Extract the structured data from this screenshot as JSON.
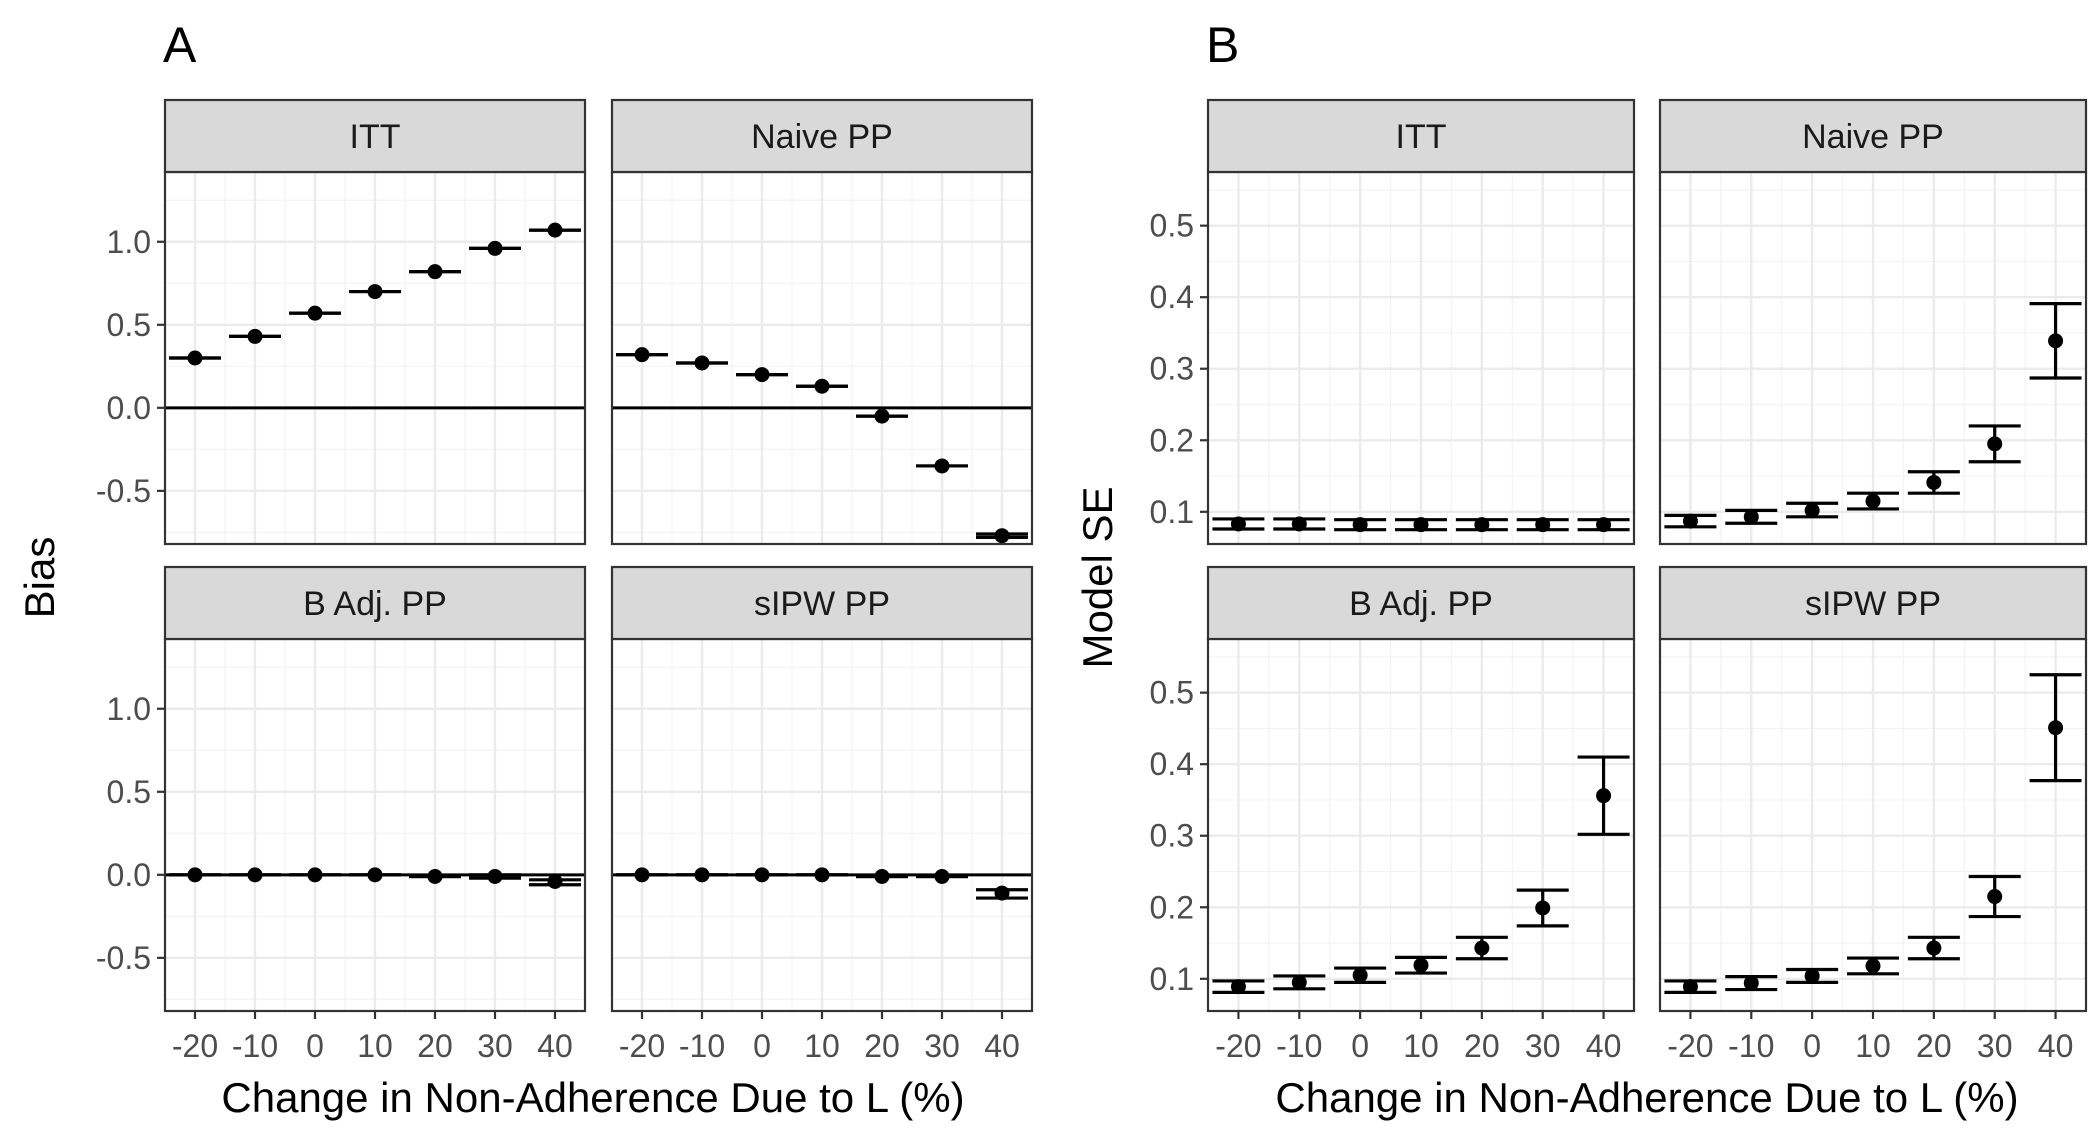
{
  "chart_data": [
    {
      "type": "scatter",
      "tag": "A",
      "xlabel": "Change in Non-Adherence Due to L (%)",
      "ylabel": "Bias",
      "x": [
        -20,
        -10,
        0,
        10,
        20,
        30,
        40
      ],
      "x_tick_labels": [
        "-20",
        "-10",
        "0",
        "10",
        "20",
        "30",
        "40"
      ],
      "ylim": [
        -0.82,
        1.42
      ],
      "y_ticks": [
        -0.5,
        0.0,
        0.5,
        1.0
      ],
      "y_tick_labels": [
        "-0.5",
        "0.0",
        "0.5",
        "1.0"
      ],
      "reference_line": 0,
      "grid": true,
      "facets": [
        {
          "name": "ITT",
          "values": [
            0.3,
            0.43,
            0.57,
            0.7,
            0.82,
            0.96,
            1.07
          ],
          "lower": [
            0.3,
            0.43,
            0.57,
            0.7,
            0.82,
            0.96,
            1.07
          ],
          "upper": [
            0.3,
            0.43,
            0.57,
            0.7,
            0.82,
            0.96,
            1.07
          ]
        },
        {
          "name": "Naive PP",
          "values": [
            0.32,
            0.27,
            0.2,
            0.13,
            -0.05,
            -0.35,
            -0.77
          ],
          "lower": [
            0.32,
            0.27,
            0.2,
            0.13,
            -0.05,
            -0.35,
            -0.78
          ],
          "upper": [
            0.32,
            0.27,
            0.2,
            0.13,
            -0.05,
            -0.35,
            -0.76
          ]
        },
        {
          "name": "B Adj. PP",
          "values": [
            0.0,
            0.0,
            0.0,
            0.0,
            -0.01,
            -0.01,
            -0.04
          ],
          "lower": [
            0.0,
            0.0,
            0.0,
            0.0,
            -0.01,
            -0.02,
            -0.06
          ],
          "upper": [
            0.0,
            0.0,
            0.0,
            0.0,
            -0.01,
            0.0,
            -0.03
          ]
        },
        {
          "name": "sIPW PP",
          "values": [
            0.0,
            0.0,
            0.0,
            0.0,
            -0.01,
            -0.01,
            -0.11
          ],
          "lower": [
            0.0,
            0.0,
            0.0,
            0.0,
            -0.01,
            -0.01,
            -0.14
          ],
          "upper": [
            0.0,
            0.0,
            0.0,
            0.0,
            -0.01,
            -0.01,
            -0.09
          ]
        }
      ]
    },
    {
      "type": "scatter",
      "tag": "B",
      "xlabel": "Change in Non-Adherence Due to L (%)",
      "ylabel": "Model SE",
      "x": [
        -20,
        -10,
        0,
        10,
        20,
        30,
        40
      ],
      "x_tick_labels": [
        "-20",
        "-10",
        "0",
        "10",
        "20",
        "30",
        "40"
      ],
      "ylim": [
        0.055,
        0.575
      ],
      "y_ticks": [
        0.1,
        0.2,
        0.3,
        0.4,
        0.5
      ],
      "y_tick_labels": [
        "0.1",
        "0.2",
        "0.3",
        "0.4",
        "0.5"
      ],
      "grid": true,
      "facets": [
        {
          "name": "ITT",
          "values": [
            0.083,
            0.083,
            0.082,
            0.082,
            0.082,
            0.082,
            0.082
          ],
          "lower": [
            0.076,
            0.076,
            0.075,
            0.075,
            0.075,
            0.075,
            0.075
          ],
          "upper": [
            0.09,
            0.09,
            0.089,
            0.089,
            0.089,
            0.089,
            0.089
          ]
        },
        {
          "name": "Naive PP",
          "values": [
            0.087,
            0.093,
            0.102,
            0.115,
            0.141,
            0.195,
            0.339
          ],
          "lower": [
            0.079,
            0.084,
            0.093,
            0.104,
            0.126,
            0.17,
            0.287
          ],
          "upper": [
            0.095,
            0.102,
            0.112,
            0.126,
            0.156,
            0.22,
            0.391
          ]
        },
        {
          "name": "B Adj. PP",
          "values": [
            0.089,
            0.095,
            0.105,
            0.119,
            0.143,
            0.199,
            0.356
          ],
          "lower": [
            0.081,
            0.086,
            0.095,
            0.108,
            0.128,
            0.174,
            0.302
          ],
          "upper": [
            0.097,
            0.104,
            0.115,
            0.13,
            0.158,
            0.224,
            0.41
          ]
        },
        {
          "name": "sIPW PP",
          "values": [
            0.089,
            0.094,
            0.104,
            0.118,
            0.143,
            0.215,
            0.451
          ],
          "lower": [
            0.081,
            0.085,
            0.095,
            0.107,
            0.128,
            0.187,
            0.377
          ],
          "upper": [
            0.097,
            0.103,
            0.113,
            0.129,
            0.158,
            0.243,
            0.525
          ]
        }
      ]
    }
  ]
}
